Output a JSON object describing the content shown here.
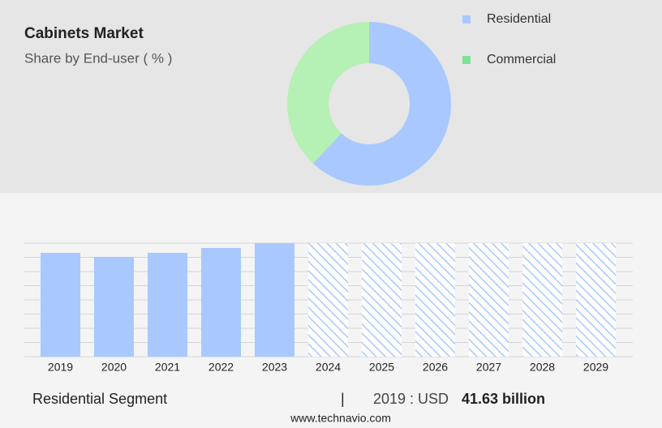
{
  "chart_data": [
    {
      "type": "pie",
      "title": "Cabinets Market",
      "subtitle": "Share by End-user ( % )",
      "categories": [
        "Residential",
        "Commercial"
      ],
      "values": [
        62,
        38
      ],
      "colors": [
        "#a8c8ff",
        "#b5f0b5"
      ],
      "legend_colors": [
        "#a8c8ff",
        "#7de394"
      ],
      "donut": true
    },
    {
      "type": "bar",
      "categories": [
        "2019",
        "2020",
        "2021",
        "2022",
        "2023",
        "2024",
        "2025",
        "2026",
        "2027",
        "2028",
        "2029"
      ],
      "values": [
        41.63,
        40.0,
        41.63,
        43.6,
        45.5,
        null,
        null,
        null,
        null,
        null,
        null
      ],
      "color": "#a8c8ff",
      "ylim": [
        0,
        45.5
      ]
    }
  ],
  "footer": {
    "segment": "Residential Segment",
    "separator": "|",
    "year_label": "2019 : USD",
    "value": "41.63 billion",
    "source": "www.technavio.com"
  }
}
